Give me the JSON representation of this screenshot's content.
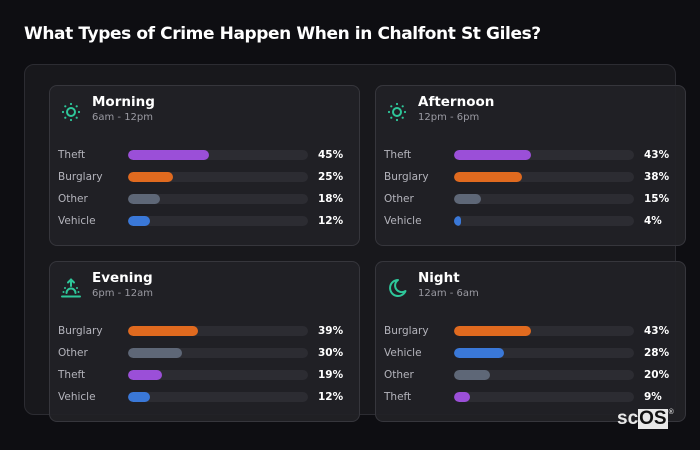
{
  "title": "What Types of Crime Happen When in Chalfont St Giles?",
  "colors": {
    "Theft": "#9b4fd8",
    "Burglary": "#e06a1f",
    "Other": "#5e6777",
    "Vehicle": "#3a78d8",
    "icon": "#2ec79a"
  },
  "cards": [
    {
      "name": "Morning",
      "time": "6am - 12pm",
      "icon": "sun-icon",
      "rows": [
        {
          "label": "Theft",
          "value": 45,
          "pct": "45%"
        },
        {
          "label": "Burglary",
          "value": 25,
          "pct": "25%"
        },
        {
          "label": "Other",
          "value": 18,
          "pct": "18%"
        },
        {
          "label": "Vehicle",
          "value": 12,
          "pct": "12%"
        }
      ]
    },
    {
      "name": "Afternoon",
      "time": "12pm - 6pm",
      "icon": "sun-icon",
      "rows": [
        {
          "label": "Theft",
          "value": 43,
          "pct": "43%"
        },
        {
          "label": "Burglary",
          "value": 38,
          "pct": "38%"
        },
        {
          "label": "Other",
          "value": 15,
          "pct": "15%"
        },
        {
          "label": "Vehicle",
          "value": 4,
          "pct": "4%"
        }
      ]
    },
    {
      "name": "Evening",
      "time": "6pm - 12am",
      "icon": "sunset-icon",
      "rows": [
        {
          "label": "Burglary",
          "value": 39,
          "pct": "39%"
        },
        {
          "label": "Other",
          "value": 30,
          "pct": "30%"
        },
        {
          "label": "Theft",
          "value": 19,
          "pct": "19%"
        },
        {
          "label": "Vehicle",
          "value": 12,
          "pct": "12%"
        }
      ]
    },
    {
      "name": "Night",
      "time": "12am - 6am",
      "icon": "moon-icon",
      "rows": [
        {
          "label": "Burglary",
          "value": 43,
          "pct": "43%"
        },
        {
          "label": "Vehicle",
          "value": 28,
          "pct": "28%"
        },
        {
          "label": "Other",
          "value": 20,
          "pct": "20%"
        },
        {
          "label": "Theft",
          "value": 9,
          "pct": "9%"
        }
      ]
    }
  ],
  "logo": {
    "sc": "sc",
    "os": "OS",
    "reg": "®"
  },
  "chart_data": [
    {
      "type": "bar",
      "orientation": "horizontal",
      "title": "Morning",
      "subtitle": "6am - 12pm",
      "categories": [
        "Theft",
        "Burglary",
        "Other",
        "Vehicle"
      ],
      "values": [
        45,
        25,
        18,
        12
      ],
      "unit": "%",
      "xlim": [
        0,
        100
      ]
    },
    {
      "type": "bar",
      "orientation": "horizontal",
      "title": "Afternoon",
      "subtitle": "12pm - 6pm",
      "categories": [
        "Theft",
        "Burglary",
        "Other",
        "Vehicle"
      ],
      "values": [
        43,
        38,
        15,
        4
      ],
      "unit": "%",
      "xlim": [
        0,
        100
      ]
    },
    {
      "type": "bar",
      "orientation": "horizontal",
      "title": "Evening",
      "subtitle": "6pm - 12am",
      "categories": [
        "Burglary",
        "Other",
        "Theft",
        "Vehicle"
      ],
      "values": [
        39,
        30,
        19,
        12
      ],
      "unit": "%",
      "xlim": [
        0,
        100
      ]
    },
    {
      "type": "bar",
      "orientation": "horizontal",
      "title": "Night",
      "subtitle": "12am - 6am",
      "categories": [
        "Burglary",
        "Vehicle",
        "Other",
        "Theft"
      ],
      "values": [
        43,
        28,
        20,
        9
      ],
      "unit": "%",
      "xlim": [
        0,
        100
      ]
    }
  ]
}
